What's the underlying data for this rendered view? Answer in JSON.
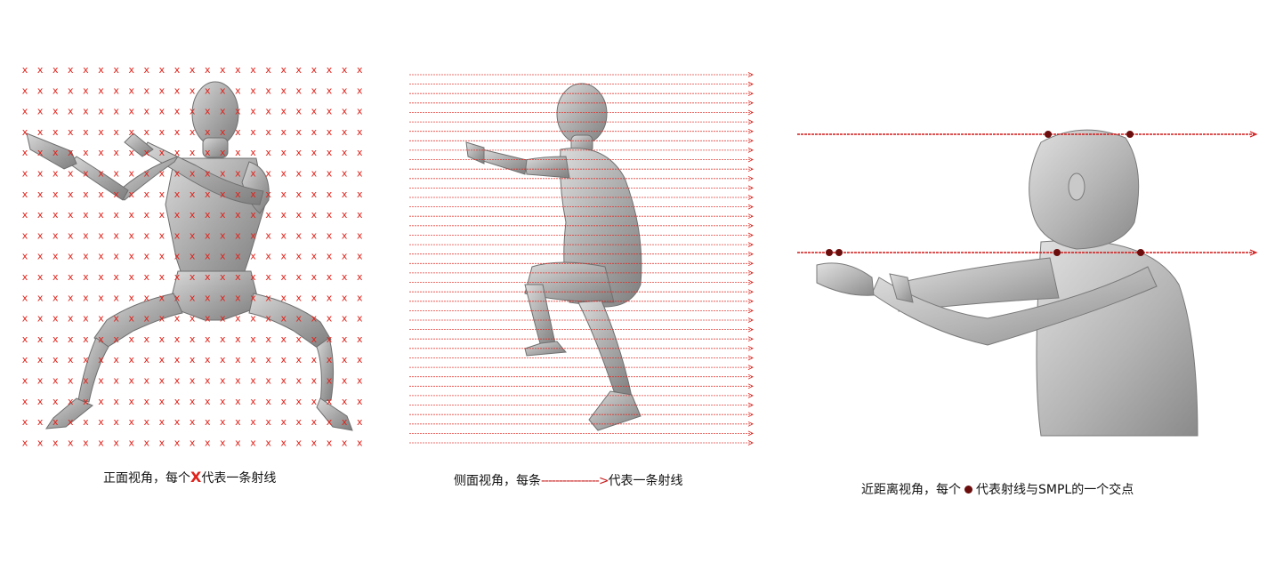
{
  "panels": {
    "front": {
      "caption_pre": "正面视角，每个",
      "caption_marker": "X",
      "caption_post": "代表一条射线",
      "marker_char": "x",
      "marker_color": "#e0231c",
      "grid_cols": 23,
      "grid_rows": 19
    },
    "side": {
      "caption_pre": "侧面视角，每条",
      "caption_arrow": "---------------->",
      "caption_post": "代表一条射线",
      "ray_color": "#e0231c",
      "ray_count": 40
    },
    "close": {
      "caption_pre": "近距离视角，每个",
      "caption_post": "代表射线与SMPL的一个交点",
      "ray_color": "#d11a1a",
      "dot_color": "#6b0d0d"
    }
  }
}
